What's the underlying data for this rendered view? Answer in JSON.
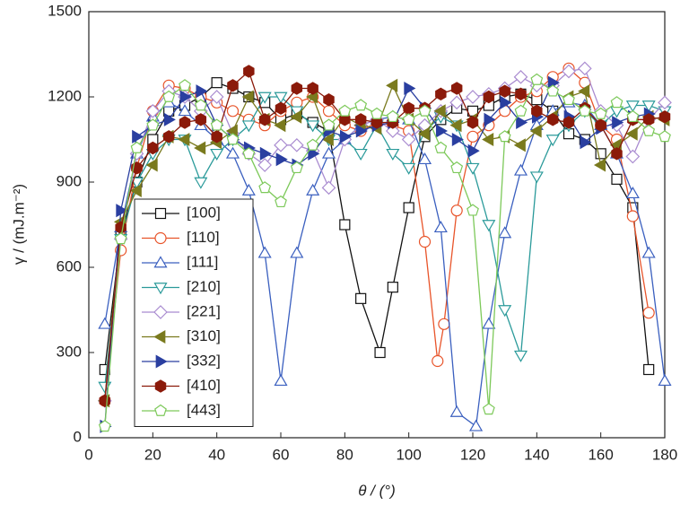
{
  "chart_data": {
    "type": "line",
    "xlabel": "θ / (°)",
    "ylabel": "γ / (mJ.m⁻²)",
    "xlim": [
      0,
      180
    ],
    "xticks": [
      0,
      20,
      40,
      60,
      80,
      100,
      120,
      140,
      160,
      180
    ],
    "ylim": [
      0,
      1500
    ],
    "yticks": [
      0,
      300,
      600,
      900,
      1200,
      1500
    ],
    "legend": "left",
    "series": [
      {
        "name": "[100]",
        "color": "#111111",
        "marker": "square",
        "filled": false,
        "x": [
          5,
          10,
          15,
          20,
          25,
          30,
          35,
          40,
          45,
          50,
          55,
          60,
          65,
          70,
          75,
          80,
          85,
          91,
          95,
          100,
          105,
          110,
          115,
          120,
          125,
          130,
          135,
          140,
          145,
          150,
          155,
          160,
          165,
          170,
          175
        ],
        "values": [
          240,
          720,
          900,
          1050,
          1150,
          1170,
          1200,
          1250,
          1230,
          1200,
          1180,
          1120,
          1140,
          1110,
          1080,
          750,
          490,
          300,
          530,
          810,
          1060,
          1120,
          1160,
          1150,
          1170,
          1200,
          1210,
          1190,
          1150,
          1070,
          1050,
          1000,
          910,
          810,
          240
        ]
      },
      {
        "name": "[110]",
        "color": "#e8542a",
        "marker": "circle",
        "filled": false,
        "x": [
          5,
          10,
          15,
          20,
          25,
          30,
          35,
          40,
          45,
          50,
          55,
          60,
          65,
          70,
          75,
          80,
          85,
          90,
          95,
          100,
          105,
          109,
          111,
          115,
          120,
          125,
          130,
          135,
          140,
          145,
          150,
          155,
          160,
          165,
          170,
          175
        ],
        "values": [
          130,
          660,
          950,
          1150,
          1240,
          1230,
          1200,
          1180,
          1150,
          1120,
          1100,
          1150,
          1180,
          1200,
          1150,
          1100,
          1080,
          1110,
          1100,
          1080,
          690,
          270,
          400,
          800,
          1060,
          1100,
          1150,
          1200,
          1220,
          1270,
          1300,
          1250,
          1100,
          1050,
          780,
          440
        ]
      },
      {
        "name": "[111]",
        "color": "#3a5fbf",
        "marker": "triangle-up",
        "filled": false,
        "x": [
          5,
          10,
          15,
          20,
          25,
          30,
          35,
          40,
          45,
          50,
          55,
          60,
          65,
          70,
          75,
          80,
          85,
          90,
          95,
          100,
          105,
          110,
          115,
          121,
          125,
          130,
          135,
          140,
          145,
          150,
          155,
          160,
          165,
          170,
          175,
          180
        ],
        "values": [
          400,
          740,
          1000,
          1130,
          1180,
          1150,
          1100,
          1050,
          1000,
          870,
          650,
          200,
          650,
          870,
          1000,
          1050,
          1100,
          1120,
          1130,
          1120,
          980,
          740,
          90,
          40,
          400,
          720,
          940,
          1100,
          1150,
          1180,
          1170,
          1100,
          1000,
          860,
          650,
          200
        ]
      },
      {
        "name": "[210]",
        "color": "#2a9a9a",
        "marker": "triangle-down",
        "filled": false,
        "x": [
          5,
          10,
          15,
          20,
          25,
          30,
          35,
          40,
          45,
          50,
          55,
          60,
          65,
          70,
          75,
          80,
          85,
          90,
          95,
          100,
          105,
          110,
          115,
          120,
          125,
          130,
          135,
          140,
          145,
          150,
          155,
          160,
          165,
          170,
          175,
          180
        ],
        "values": [
          180,
          700,
          900,
          1000,
          1050,
          1050,
          900,
          1000,
          1050,
          1100,
          1200,
          1200,
          1150,
          1100,
          1050,
          1050,
          1000,
          1100,
          1000,
          950,
          1080,
          1130,
          1100,
          950,
          750,
          450,
          290,
          920,
          1050,
          1100,
          1150,
          1100,
          1150,
          1170,
          1170,
          1150
        ]
      },
      {
        "name": "[221]",
        "color": "#a98bd0",
        "marker": "diamond",
        "filled": false,
        "x": [
          5,
          10,
          15,
          20,
          25,
          30,
          35,
          40,
          45,
          50,
          55,
          60,
          65,
          70,
          75,
          80,
          85,
          90,
          95,
          100,
          105,
          110,
          115,
          120,
          125,
          130,
          135,
          140,
          145,
          150,
          155,
          160,
          165,
          170,
          175,
          180
        ],
        "values": [
          130,
          700,
          1000,
          1150,
          1220,
          1200,
          1150,
          1200,
          1070,
          1000,
          960,
          1030,
          1030,
          1010,
          880,
          1050,
          1100,
          1120,
          1080,
          1050,
          1100,
          1150,
          1180,
          1200,
          1210,
          1230,
          1270,
          1240,
          1240,
          1290,
          1300,
          1150,
          1100,
          990,
          1120,
          1180
        ]
      },
      {
        "name": "[310]",
        "color": "#7a7a1e",
        "marker": "triangle-left",
        "filled": true,
        "x": [
          5,
          10,
          15,
          20,
          25,
          30,
          35,
          40,
          45,
          50,
          55,
          60,
          65,
          70,
          75,
          80,
          85,
          90,
          95,
          100,
          105,
          110,
          115,
          120,
          125,
          130,
          135,
          140,
          145,
          150,
          155,
          160,
          165,
          170,
          175,
          180
        ],
        "values": [
          130,
          760,
          870,
          960,
          1060,
          1050,
          1020,
          1040,
          1080,
          1200,
          1120,
          1100,
          1130,
          1200,
          1050,
          1130,
          1100,
          1090,
          1240,
          1120,
          1070,
          1150,
          1100,
          1120,
          1050,
          1060,
          1030,
          1080,
          1130,
          1200,
          1220,
          960,
          1030,
          1070,
          1130,
          1120
        ]
      },
      {
        "name": "[332]",
        "color": "#2a3fa0",
        "marker": "triangle-right",
        "filled": true,
        "x": [
          5,
          10,
          15,
          20,
          25,
          30,
          35,
          40,
          45,
          50,
          55,
          60,
          65,
          70,
          75,
          80,
          85,
          90,
          95,
          100,
          105,
          110,
          115,
          120,
          125,
          130,
          135,
          140,
          145,
          150,
          155,
          160,
          165,
          170,
          175
        ],
        "values": [
          40,
          800,
          1060,
          1100,
          1120,
          1200,
          1220,
          1100,
          1050,
          1020,
          1000,
          980,
          960,
          1000,
          1080,
          1060,
          1080,
          1100,
          1110,
          1230,
          1160,
          1080,
          1050,
          1010,
          1120,
          1180,
          1110,
          1130,
          1250,
          1130,
          1040,
          1090,
          1110,
          1130,
          1140
        ]
      },
      {
        "name": "[410]",
        "color": "#8b1a0a",
        "marker": "hexagon",
        "filled": true,
        "x": [
          5,
          10,
          15,
          20,
          25,
          30,
          35,
          40,
          45,
          50,
          55,
          60,
          65,
          70,
          75,
          80,
          85,
          90,
          95,
          100,
          105,
          110,
          115,
          120,
          125,
          130,
          135,
          140,
          145,
          150,
          155,
          160,
          165,
          170,
          175,
          180
        ],
        "values": [
          130,
          740,
          950,
          1020,
          1060,
          1110,
          1120,
          1060,
          1240,
          1290,
          1120,
          1160,
          1230,
          1230,
          1190,
          1120,
          1120,
          1110,
          1110,
          1160,
          1160,
          1210,
          1230,
          1110,
          1200,
          1220,
          1210,
          1150,
          1120,
          1110,
          1160,
          1100,
          1000,
          1120,
          1120,
          1130
        ]
      },
      {
        "name": "[443]",
        "color": "#7dc95a",
        "marker": "pentagon",
        "filled": false,
        "x": [
          5,
          10,
          15,
          20,
          25,
          30,
          35,
          40,
          45,
          50,
          55,
          60,
          65,
          70,
          75,
          80,
          85,
          90,
          95,
          100,
          105,
          110,
          115,
          120,
          125,
          130,
          135,
          140,
          145,
          150,
          155,
          160,
          165,
          170,
          175,
          180
        ],
        "values": [
          40,
          700,
          1020,
          1100,
          1200,
          1240,
          1170,
          1100,
          1050,
          1000,
          880,
          830,
          950,
          1030,
          1100,
          1150,
          1170,
          1140,
          1130,
          1120,
          1150,
          1020,
          950,
          800,
          100,
          1060,
          1150,
          1260,
          1220,
          1190,
          1150,
          1140,
          1180,
          1130,
          1080,
          1060
        ]
      }
    ]
  }
}
